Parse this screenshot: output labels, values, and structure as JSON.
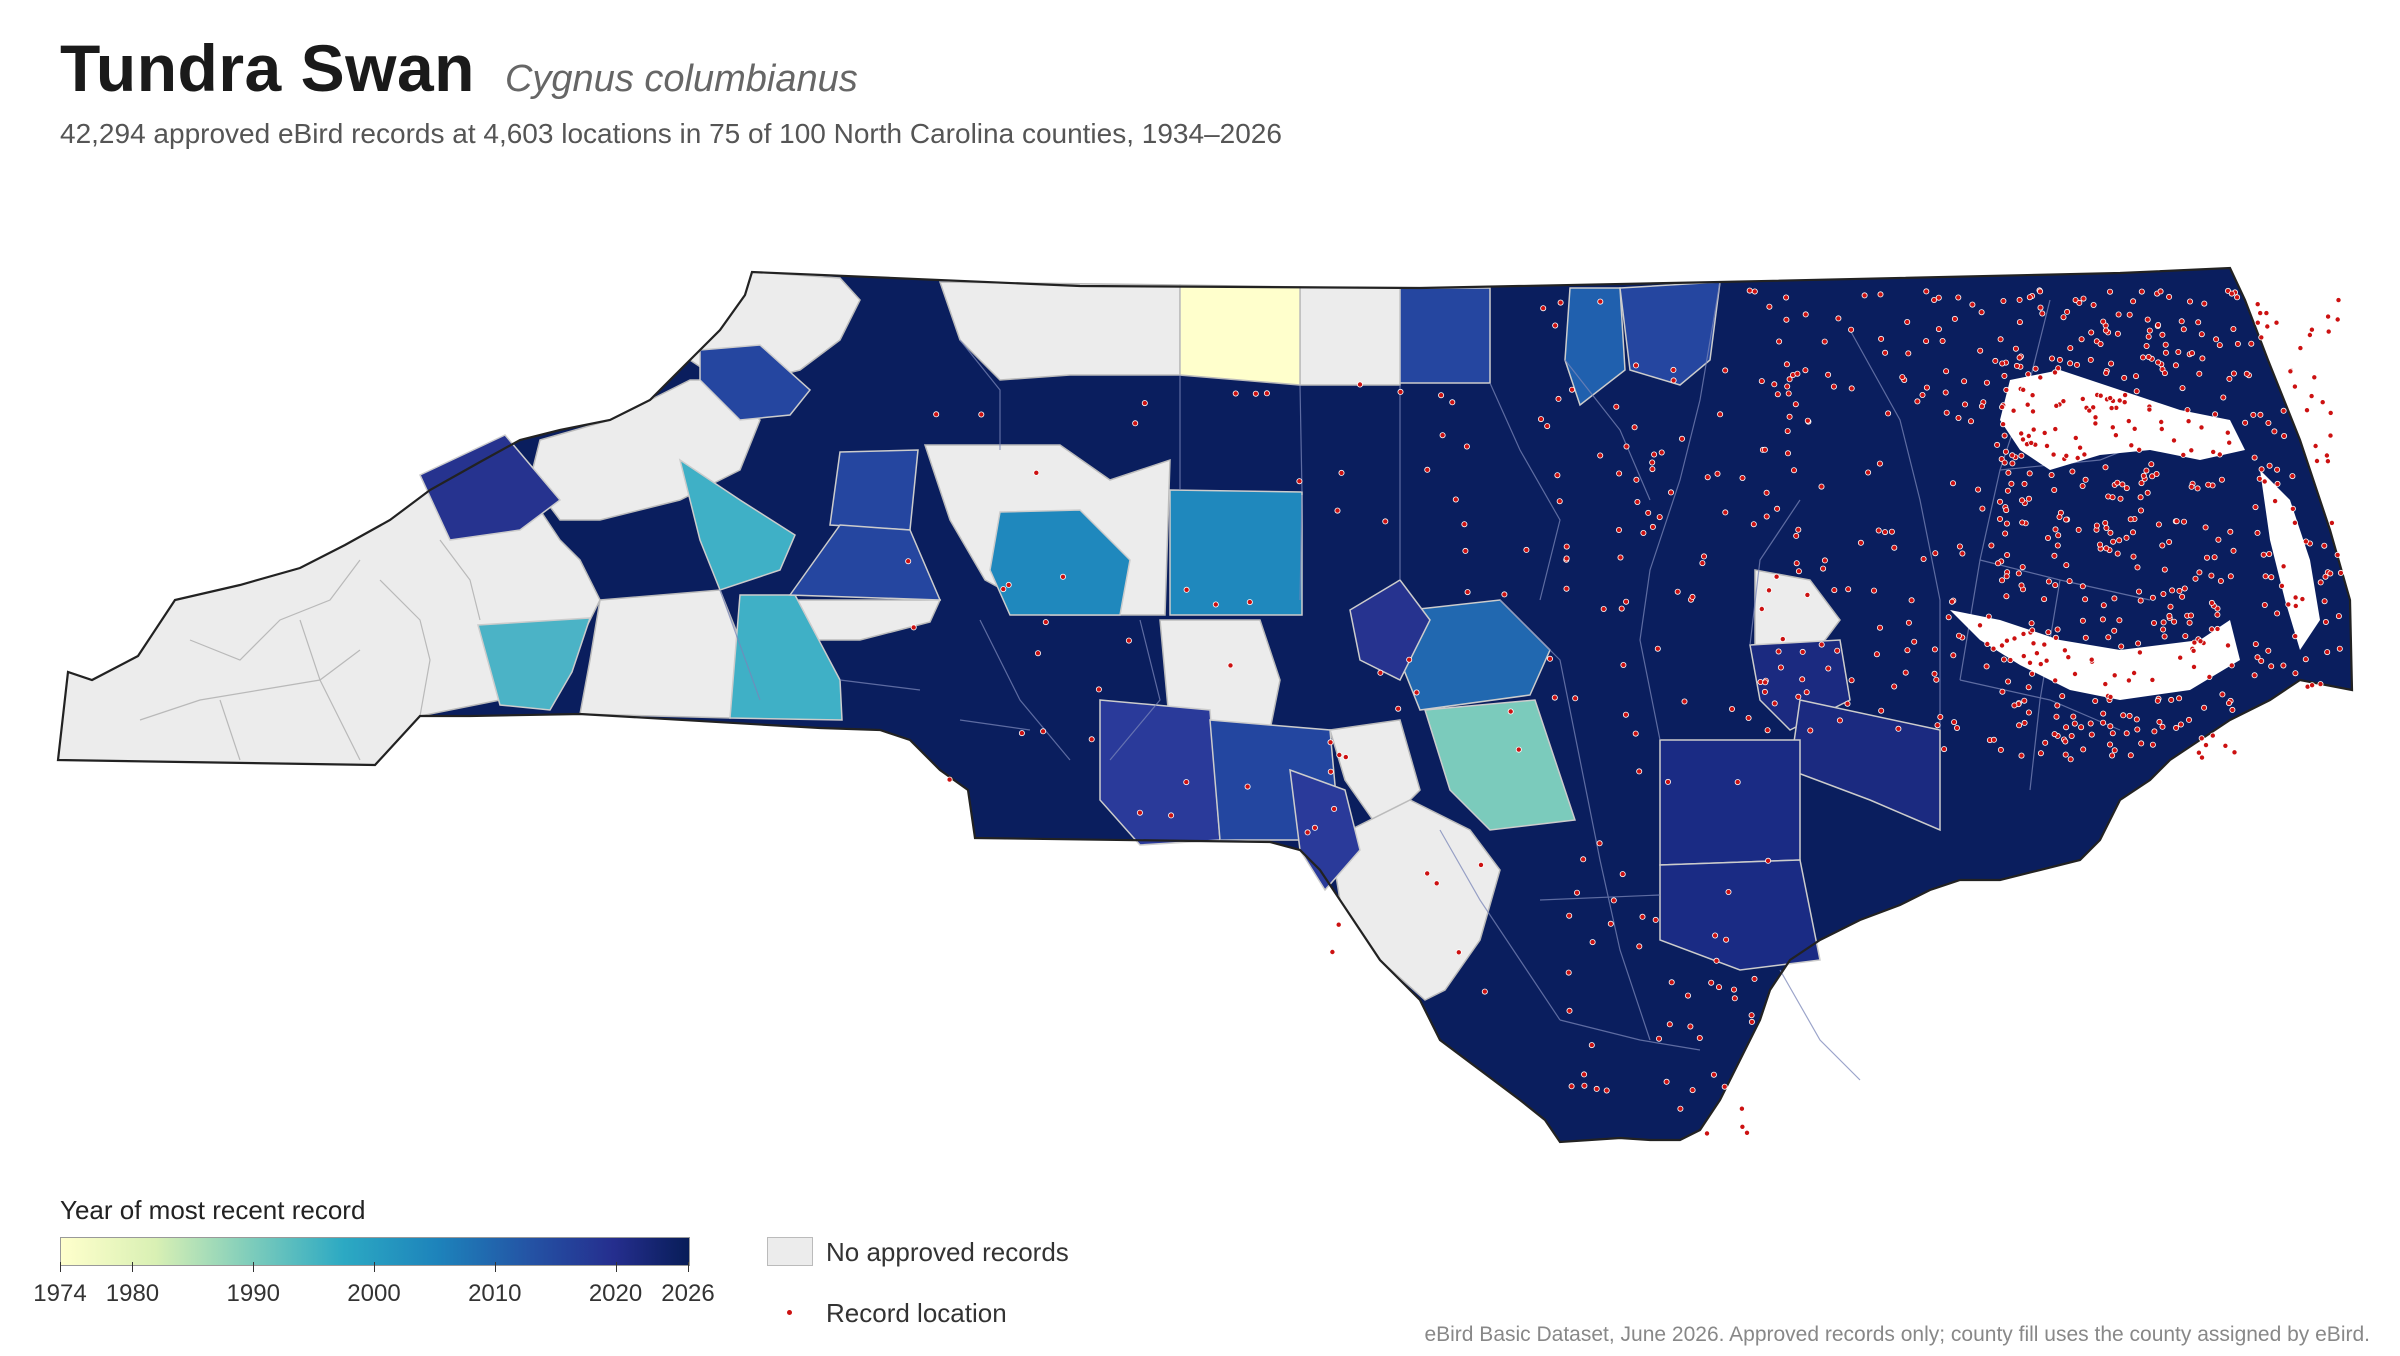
{
  "header": {
    "title": "Tundra Swan",
    "scientific_name": "Cygnus columbianus",
    "subtitle": "42,294 approved eBird records at 4,603 locations in 75 of 100 North Carolina counties, 1934–2026"
  },
  "legend": {
    "color_title": "Year of most recent record",
    "ramp_min": 1974,
    "ramp_max": 2026,
    "ticks": [
      "1974",
      "1980",
      "1990",
      "2000",
      "2010",
      "2020",
      "2026"
    ],
    "no_records_label": "No approved records",
    "record_location_label": "Record location"
  },
  "colors": {
    "no_records": "#ececec",
    "record_dot": "#cc1111",
    "latest": "#081d58",
    "state_border": "#222222"
  },
  "footer": {
    "source": "eBird Basic Dataset, June 2026. Approved records only; county fill uses the county assigned by eBird."
  }
}
